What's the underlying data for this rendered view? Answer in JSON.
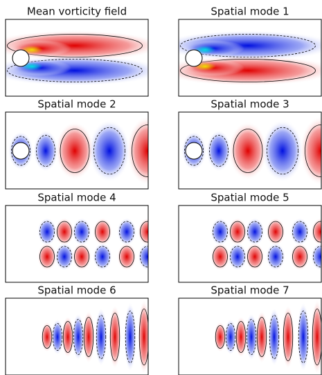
{
  "panels": [
    {
      "title": "Mean vorticity field"
    },
    {
      "title": "Spatial mode 1"
    },
    {
      "title": "Spatial mode 2"
    },
    {
      "title": "Spatial mode 3"
    },
    {
      "title": "Spatial mode 4"
    },
    {
      "title": "Spatial mode 5"
    },
    {
      "title": "Spatial mode 6"
    },
    {
      "title": "Spatial mode 7"
    }
  ]
}
